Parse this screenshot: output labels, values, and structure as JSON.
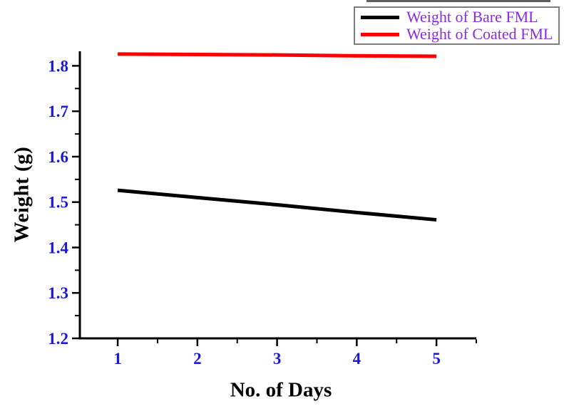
{
  "chart_data": {
    "type": "line",
    "title": "",
    "xlabel": "No. of Days",
    "ylabel": "Weight (g)",
    "x": [
      1,
      2,
      3,
      4,
      5
    ],
    "series": [
      {
        "name": "Weight of Bare FML",
        "color": "#000000",
        "values": [
          1.526,
          1.51,
          1.494,
          1.477,
          1.461
        ]
      },
      {
        "name": "Weight of Coated FML",
        "color": "#fa0000",
        "values": [
          1.826,
          1.825,
          1.824,
          1.822,
          1.821
        ]
      }
    ],
    "xlim": [
      0.525,
      5.5
    ],
    "ylim": [
      1.2,
      1.832
    ],
    "x_major_ticks": [
      1,
      2,
      3,
      4,
      5
    ],
    "x_minor_ticks": [
      1.5,
      2.5,
      3.5,
      4.5,
      5.5
    ],
    "y_major_ticks": [
      1.2,
      1.3,
      1.4,
      1.5,
      1.6,
      1.7,
      1.8
    ],
    "y_minor_ticks": [
      1.25,
      1.35,
      1.45,
      1.55,
      1.65,
      1.75
    ],
    "grid": false,
    "legend_position": "top-right",
    "line_width": 5,
    "colors": {
      "axis": "#000000",
      "tick_labels": "#1a1ad2",
      "axis_labels": "#000000",
      "legend_text": "#8a2be2",
      "legend_border": "#7d7d7d"
    }
  }
}
